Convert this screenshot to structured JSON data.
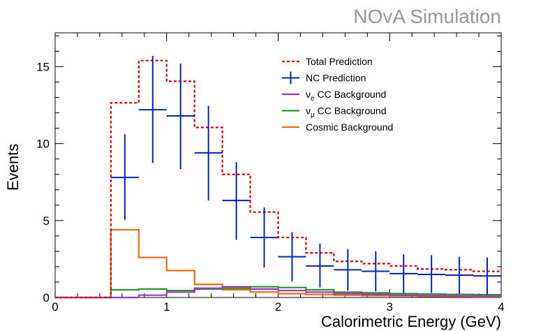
{
  "chart_data": {
    "type": "line",
    "title": "",
    "watermark": {
      "text": "NOvA Simulation",
      "color": "#999999"
    },
    "xlabel": "Calorimetric Energy (GeV)",
    "ylabel": "Events",
    "xlim": [
      0,
      4
    ],
    "ylim": [
      0,
      17.2
    ],
    "x_ticks": [
      0,
      1,
      2,
      3,
      4
    ],
    "x_tick_labels": [
      "0",
      "1",
      "2",
      "3",
      "4"
    ],
    "y_ticks": [
      0,
      5,
      10,
      15
    ],
    "y_tick_labels": [
      "0",
      "5",
      "10",
      "15"
    ],
    "grid": false,
    "legend_position": "top-right",
    "bin_edges": [
      0,
      0.25,
      0.5,
      0.75,
      1.0,
      1.25,
      1.5,
      1.75,
      2.0,
      2.25,
      2.5,
      2.75,
      3.0,
      3.25,
      3.5,
      3.75,
      4.0
    ],
    "series": [
      {
        "name": "Total Prediction",
        "style": "dashed-step",
        "color": "#dd0000",
        "values": [
          0,
          0,
          12.65,
          15.4,
          14.05,
          11.05,
          8.0,
          5.55,
          3.9,
          2.9,
          2.35,
          2.2,
          2.05,
          1.85,
          1.8,
          1.7
        ]
      },
      {
        "name": "NC Prediction",
        "style": "errorbar",
        "color": "#0022cc",
        "x": [
          0.625,
          0.875,
          1.125,
          1.375,
          1.625,
          1.875,
          2.125,
          2.375,
          2.625,
          2.875,
          3.125,
          3.375,
          3.625,
          3.875
        ],
        "values": [
          7.8,
          12.2,
          11.8,
          9.4,
          6.3,
          3.9,
          2.65,
          2.05,
          1.8,
          1.7,
          1.55,
          1.5,
          1.45,
          1.4
        ],
        "err_low": [
          2.75,
          3.45,
          3.45,
          3.1,
          2.55,
          1.95,
          1.6,
          1.4,
          1.35,
          1.3,
          1.25,
          1.2,
          1.2,
          1.2
        ],
        "err_high": [
          2.8,
          3.5,
          3.4,
          3.05,
          2.5,
          1.95,
          1.6,
          1.45,
          1.35,
          1.3,
          1.25,
          1.25,
          1.2,
          1.2
        ]
      },
      {
        "name_parts": [
          "ν",
          "e",
          " CC Background"
        ],
        "style": "step",
        "color": "#9933cc",
        "values": [
          0,
          0,
          0.0,
          0.15,
          0.35,
          0.6,
          0.7,
          0.55,
          0.45,
          0.35,
          0.25,
          0.2,
          0.15,
          0.12,
          0.1,
          0.08
        ]
      },
      {
        "name_parts": [
          "ν",
          "μ",
          " CC Background"
        ],
        "style": "step",
        "color": "#229922",
        "values": [
          0,
          0,
          0.5,
          0.55,
          0.45,
          0.55,
          0.6,
          0.7,
          0.65,
          0.5,
          0.35,
          0.3,
          0.25,
          0.22,
          0.2,
          0.18
        ]
      },
      {
        "name": "Cosmic Background",
        "style": "step",
        "color": "#ff6600",
        "values": [
          0,
          0,
          4.4,
          2.6,
          1.75,
          0.85,
          0.5,
          0.35,
          0.25,
          0.2,
          0.15,
          0.12,
          0.1,
          0.08,
          0.06,
          0.05
        ]
      }
    ]
  }
}
